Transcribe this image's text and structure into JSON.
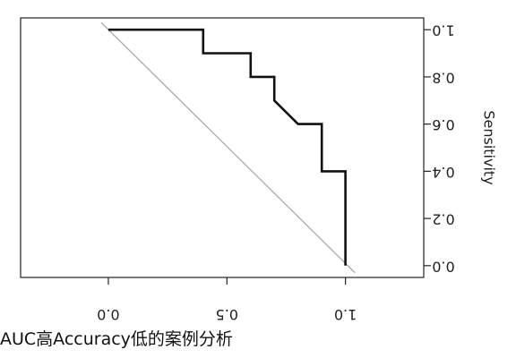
{
  "caption": "AUC高Accuracy低的案例分析",
  "colors": {
    "roc_line": "#111111",
    "diagonal": "#aaaaaa",
    "frame": "#222222",
    "text": "#222222"
  },
  "chart_data": {
    "type": "line",
    "orientation": "rotated-180",
    "x_axis": {
      "label": "",
      "ticks": [
        0.0,
        0.5,
        1.0
      ],
      "tick_labels": [
        "0.0",
        "0.5",
        "1.0"
      ],
      "range": [
        -0.37,
        1.33
      ]
    },
    "y_axis": {
      "label": "Sensitivity",
      "ticks": [
        0.0,
        0.2,
        0.4,
        0.6,
        0.8,
        1.0
      ],
      "tick_labels": [
        "0.0",
        "0.2",
        "0.4",
        "0.6",
        "0.8",
        "1.0"
      ],
      "range": [
        -0.05,
        1.05
      ]
    },
    "grid": false,
    "legend": "none",
    "series": [
      {
        "points": [
          [
            1.0,
            0.0
          ],
          [
            1.0,
            0.4
          ],
          [
            0.9,
            0.4
          ],
          [
            0.9,
            0.6
          ],
          [
            0.8,
            0.6
          ],
          [
            0.7,
            0.7
          ],
          [
            0.7,
            0.8
          ],
          [
            0.6,
            0.8
          ],
          [
            0.6,
            0.9
          ],
          [
            0.4,
            0.9
          ],
          [
            0.4,
            1.0
          ],
          [
            0.0,
            1.0
          ]
        ]
      },
      {
        "points": [
          [
            1.04,
            -0.03
          ],
          [
            -0.03,
            1.03
          ]
        ]
      }
    ]
  }
}
